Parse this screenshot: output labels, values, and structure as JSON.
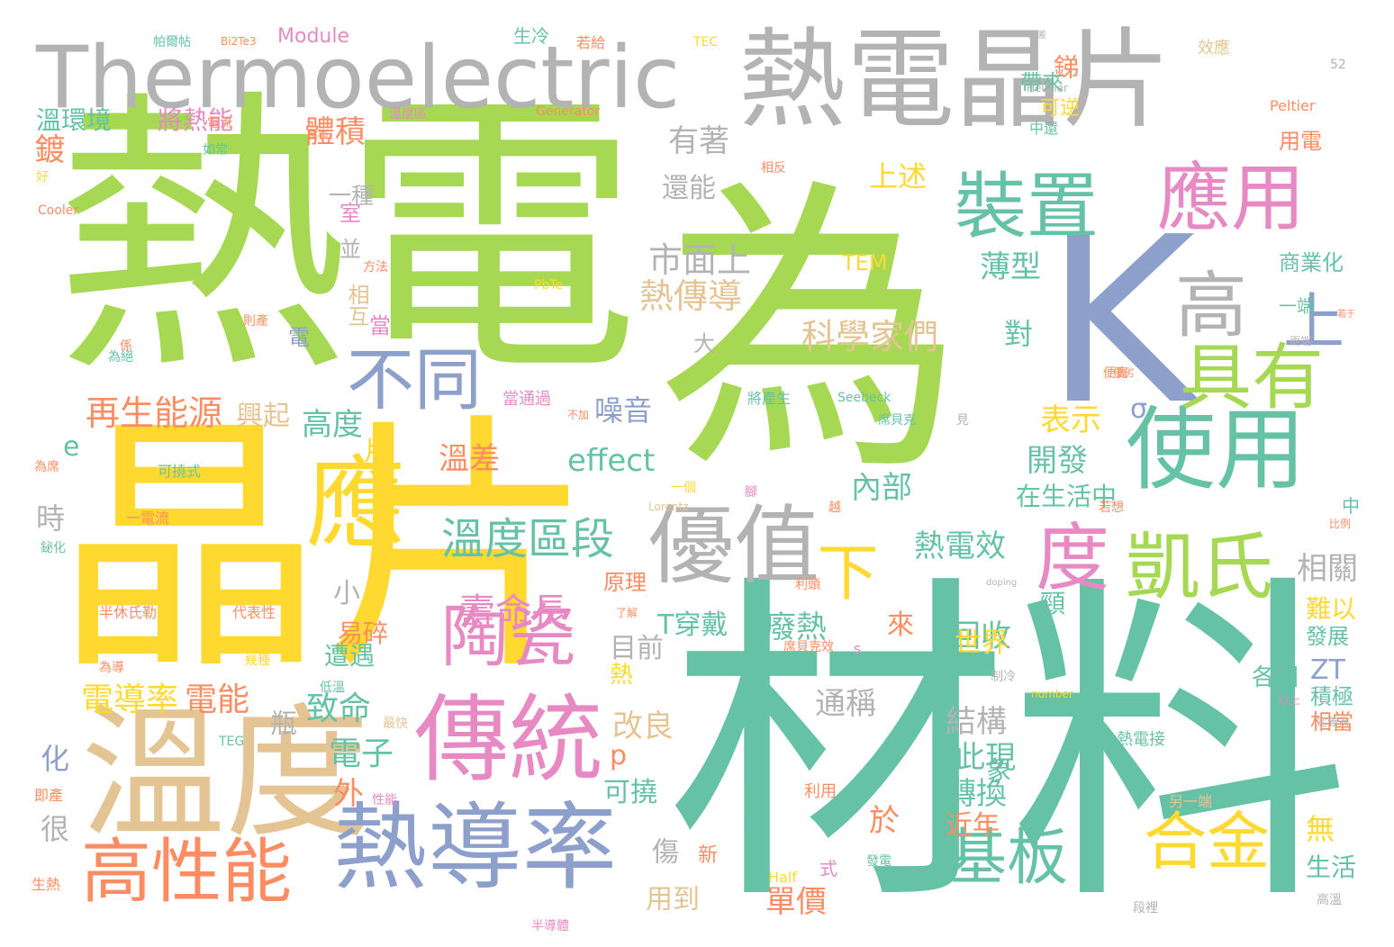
{
  "colors": {
    "green": "#a6d854",
    "teal": "#66c2a5",
    "yellow": "#ffd92f",
    "gray": "#b3b3b3",
    "blue": "#8da0cb",
    "pink": "#e78ac3",
    "tan": "#e5c494",
    "orange": "#fc8d62"
  },
  "words": [
    "熱",
    "電",
    "為",
    "晶片",
    "材料",
    "溫度",
    "熱導率",
    "傳統",
    "熱電晶片",
    "Thermoelectric",
    "K",
    "裝置",
    "應用",
    "使用",
    "具有",
    "高",
    "上",
    "不同",
    "應",
    "優值",
    "度",
    "凱氏",
    "陶瓷",
    "高性能",
    "基板",
    "合金",
    "下",
    "溫度區段",
    "壽命長",
    "effect",
    "再生能源",
    "科學家們",
    "熱傳導",
    "市面上",
    "有著",
    "體積",
    "上述",
    "一種",
    "還能",
    "溫環境",
    "將熱能",
    "鍍",
    "時",
    "e",
    "化",
    "很",
    "電導率",
    "電能",
    "瓶",
    "致命",
    "電子",
    "外",
    "小",
    "易碎",
    "遭遇",
    "內部",
    "熱電效",
    "廢熱",
    "回收",
    "通稱",
    "結構",
    "此現",
    "轉換",
    "於",
    "近年",
    "單價",
    "改良",
    "可撓",
    "用到",
    "傷",
    "p",
    "目前",
    "熱",
    "T穿戴",
    "原理",
    "開發",
    "表示",
    "σ",
    "噪音",
    "高度",
    "興起",
    "片",
    "溫差",
    "相互",
    "當",
    "大",
    "並",
    "室",
    "世界",
    "來",
    "頸",
    "對",
    "薄型",
    "銻",
    "帶來",
    "可逆",
    "中還",
    "用電",
    "商業化",
    "一端",
    "相關",
    "難以",
    "發展",
    "積極",
    "相當",
    "ZT",
    "各國",
    "無",
    "生活",
    "在生活中",
    "TEM",
    "Module",
    "生冷",
    "TEC",
    "Peltier",
    "Generator",
    "Heusler",
    "效應",
    "52",
    "象",
    "另一端",
    "式",
    "新",
    "發電",
    "Half",
    "Seebeck",
    "PbTe",
    "Cooler",
    "帕爾帖",
    "Bi2Te3",
    "若給",
    "誤差",
    "溫度區",
    "電流",
    "如常",
    "好",
    "相反",
    "方法",
    "則產",
    "係",
    "為絕",
    "一個",
    "腳",
    "越",
    "當通過",
    "將產生",
    "為席",
    "可撓式",
    "一電流",
    "半休氏勒",
    "代表性",
    "為導",
    "幾種",
    "鉍化",
    "低溫",
    "最快",
    "即產",
    "性能",
    "生熱",
    "半導體",
    "段裡",
    "高溫",
    "利用",
    "熱電接",
    "席貝克效",
    "制冷",
    "number",
    "以上",
    "定義為",
    "比例",
    "中",
    "了解",
    "利頭",
    "若想",
    "doping",
    "Lorentz",
    "s",
    "便寬",
    "TEG",
    "電率",
    "若于",
    "兩端",
    "優劣",
    "見",
    "不加",
    "席貝克",
    "電"
  ]
}
